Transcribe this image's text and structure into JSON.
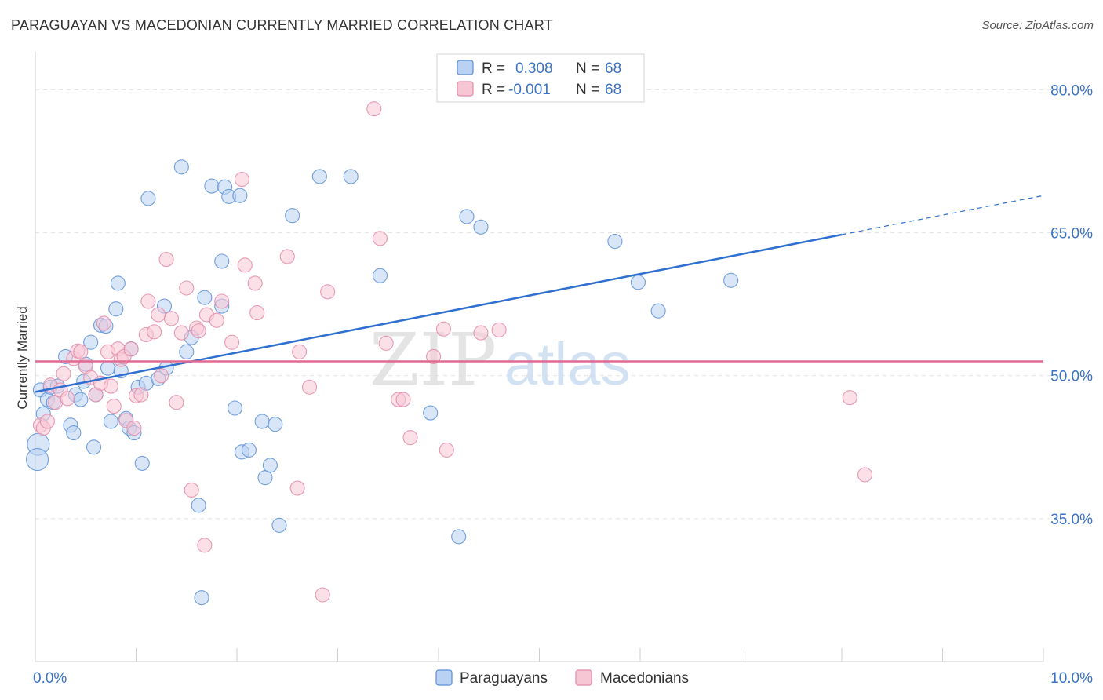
{
  "title": "PARAGUAYAN VS MACEDONIAN CURRENTLY MARRIED CORRELATION CHART",
  "source": "Source: ZipAtlas.com",
  "watermark": {
    "zip": "ZIP",
    "atlas": "atlas"
  },
  "legend_top": [
    {
      "r_label": "R =",
      "r_value": "0.308",
      "n_label": "N =",
      "n_value": "68",
      "color": "#5b8fd6",
      "fill": "#b9d1f3"
    },
    {
      "r_label": "R =",
      "r_value": "-0.001",
      "n_label": "N =",
      "n_value": "68",
      "color": "#e38aa7",
      "fill": "#f7c6d5"
    }
  ],
  "legend_bottom": [
    "Paraguayans",
    "Macedonians"
  ],
  "chart_data": {
    "type": "scatter",
    "title": "PARAGUAYAN VS MACEDONIAN CURRENTLY MARRIED CORRELATION CHART",
    "xlabel": "",
    "ylabel": "Currently Married",
    "xlim": [
      0,
      10
    ],
    "ylim": [
      20,
      83
    ],
    "x_tick_labels": [
      "0.0%",
      "10.0%"
    ],
    "y_ticks": [
      35,
      50,
      65,
      80
    ],
    "y_tick_labels": [
      "35.0%",
      "50.0%",
      "65.0%",
      "80.0%"
    ],
    "grid": true,
    "legend_position": "top-center",
    "series": [
      {
        "name": "Paraguayans",
        "color": "#5b8fd6",
        "fill": "#b9d1f3",
        "trend": {
          "x0": 0,
          "y0": 48.3,
          "x1": 8.0,
          "y1": 64.8,
          "dash_to_x": 10.0,
          "dash_to_y": 68.9
        },
        "points": [
          [
            0.05,
            48.5
          ],
          [
            0.08,
            46.0
          ],
          [
            0.12,
            47.5
          ],
          [
            0.15,
            48.8
          ],
          [
            0.18,
            47.2
          ],
          [
            0.22,
            48.9
          ],
          [
            0.3,
            52.0
          ],
          [
            0.35,
            44.8
          ],
          [
            0.38,
            44.0
          ],
          [
            0.4,
            48.0
          ],
          [
            0.45,
            47.5
          ],
          [
            0.48,
            49.4
          ],
          [
            0.5,
            51.2
          ],
          [
            0.55,
            53.5
          ],
          [
            0.58,
            42.5
          ],
          [
            0.6,
            48.0
          ],
          [
            0.65,
            55.3
          ],
          [
            0.7,
            55.2
          ],
          [
            0.72,
            50.8
          ],
          [
            0.75,
            45.2
          ],
          [
            0.8,
            57.0
          ],
          [
            0.82,
            59.7
          ],
          [
            0.85,
            50.5
          ],
          [
            0.9,
            45.5
          ],
          [
            0.93,
            44.5
          ],
          [
            0.95,
            52.8
          ],
          [
            0.98,
            44.0
          ],
          [
            1.02,
            48.8
          ],
          [
            1.06,
            40.8
          ],
          [
            1.1,
            49.2
          ],
          [
            1.12,
            68.6
          ],
          [
            1.22,
            49.7
          ],
          [
            1.28,
            57.3
          ],
          [
            1.3,
            50.8
          ],
          [
            1.45,
            71.9
          ],
          [
            1.5,
            52.5
          ],
          [
            1.55,
            54.0
          ],
          [
            1.62,
            36.4
          ],
          [
            1.65,
            26.7
          ],
          [
            1.68,
            58.2
          ],
          [
            1.75,
            69.9
          ],
          [
            1.85,
            57.3
          ],
          [
            1.85,
            62.0
          ],
          [
            1.88,
            69.8
          ],
          [
            1.92,
            68.8
          ],
          [
            1.98,
            46.6
          ],
          [
            2.03,
            68.9
          ],
          [
            2.05,
            42.0
          ],
          [
            2.12,
            42.2
          ],
          [
            2.25,
            45.2
          ],
          [
            2.28,
            39.3
          ],
          [
            2.33,
            40.6
          ],
          [
            2.38,
            44.9
          ],
          [
            2.42,
            34.3
          ],
          [
            2.55,
            66.8
          ],
          [
            2.82,
            70.9
          ],
          [
            3.13,
            70.9
          ],
          [
            3.42,
            60.5
          ],
          [
            3.92,
            46.1
          ],
          [
            4.2,
            33.1
          ],
          [
            4.28,
            66.7
          ],
          [
            4.42,
            65.6
          ],
          [
            5.75,
            64.1
          ],
          [
            5.98,
            59.8
          ],
          [
            6.18,
            56.8
          ],
          [
            6.9,
            60.0
          ],
          [
            0.03,
            42.8
          ],
          [
            0.02,
            41.2
          ]
        ]
      },
      {
        "name": "Macedonians",
        "color": "#e38aa7",
        "fill": "#f7c6d5",
        "trend": {
          "x0": 0,
          "y0": 51.5,
          "x1": 10.0,
          "y1": 51.5
        },
        "points": [
          [
            0.05,
            44.8
          ],
          [
            0.08,
            44.5
          ],
          [
            0.12,
            45.2
          ],
          [
            0.15,
            49.0
          ],
          [
            0.2,
            47.2
          ],
          [
            0.25,
            48.5
          ],
          [
            0.28,
            50.2
          ],
          [
            0.32,
            47.6
          ],
          [
            0.38,
            51.8
          ],
          [
            0.42,
            52.6
          ],
          [
            0.45,
            52.5
          ],
          [
            0.5,
            51.0
          ],
          [
            0.55,
            49.8
          ],
          [
            0.6,
            48.0
          ],
          [
            0.65,
            49.2
          ],
          [
            0.68,
            55.5
          ],
          [
            0.72,
            52.5
          ],
          [
            0.75,
            48.9
          ],
          [
            0.78,
            46.8
          ],
          [
            0.82,
            52.8
          ],
          [
            0.85,
            51.7
          ],
          [
            0.88,
            52.0
          ],
          [
            0.9,
            45.3
          ],
          [
            0.95,
            52.8
          ],
          [
            0.98,
            44.5
          ],
          [
            1.0,
            47.9
          ],
          [
            1.05,
            48.0
          ],
          [
            1.1,
            54.3
          ],
          [
            1.12,
            57.8
          ],
          [
            1.18,
            54.6
          ],
          [
            1.22,
            56.4
          ],
          [
            1.25,
            50.0
          ],
          [
            1.3,
            62.2
          ],
          [
            1.35,
            56.0
          ],
          [
            1.4,
            47.2
          ],
          [
            1.45,
            54.5
          ],
          [
            1.5,
            59.2
          ],
          [
            1.55,
            38.0
          ],
          [
            1.6,
            55.0
          ],
          [
            1.62,
            54.7
          ],
          [
            1.68,
            32.2
          ],
          [
            1.7,
            56.4
          ],
          [
            1.8,
            55.8
          ],
          [
            1.85,
            57.8
          ],
          [
            1.95,
            53.5
          ],
          [
            2.05,
            70.6
          ],
          [
            2.08,
            61.6
          ],
          [
            2.18,
            59.7
          ],
          [
            2.2,
            56.6
          ],
          [
            2.5,
            62.5
          ],
          [
            2.6,
            38.2
          ],
          [
            2.62,
            52.5
          ],
          [
            2.72,
            48.8
          ],
          [
            2.85,
            27.0
          ],
          [
            2.9,
            58.8
          ],
          [
            3.36,
            78.0
          ],
          [
            3.42,
            64.4
          ],
          [
            3.48,
            53.4
          ],
          [
            3.6,
            47.5
          ],
          [
            3.65,
            47.5
          ],
          [
            3.72,
            43.5
          ],
          [
            3.95,
            52.0
          ],
          [
            4.05,
            54.9
          ],
          [
            4.08,
            42.2
          ],
          [
            4.42,
            54.5
          ],
          [
            4.6,
            54.8
          ],
          [
            8.08,
            47.7
          ],
          [
            8.23,
            39.6
          ]
        ]
      }
    ]
  }
}
